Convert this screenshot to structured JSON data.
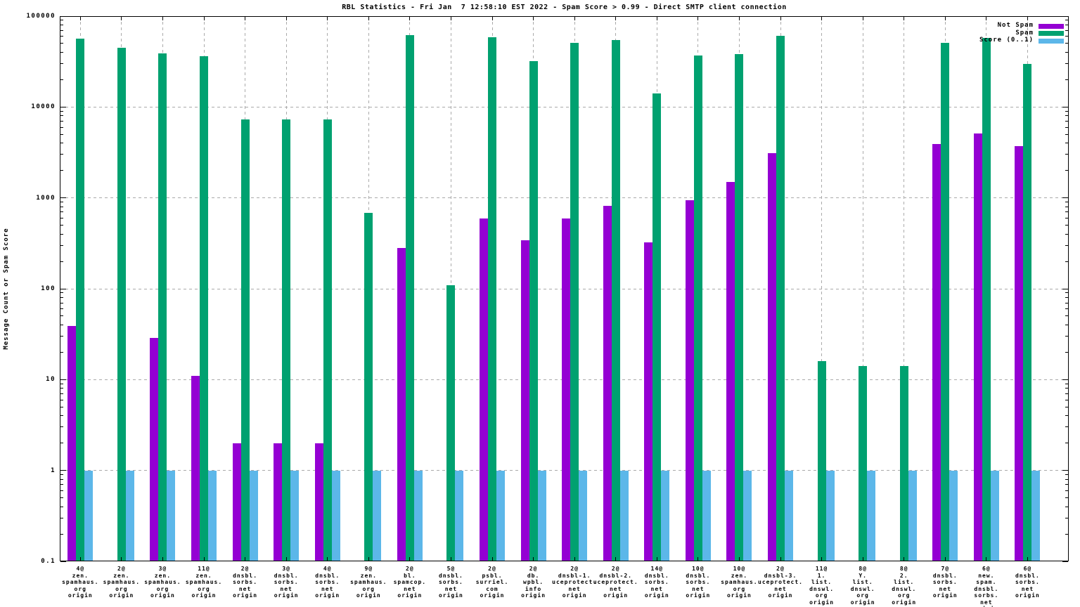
{
  "title": "RBL Statistics - Fri Jan  7 12:58:10 EST 2022 - Spam Score > 0.99 - Direct SMTP client connection",
  "y_axis": {
    "label": "Message Count or Spam Score",
    "ticks": [
      {
        "label": "100000",
        "value": 100000
      },
      {
        "label": "10000",
        "value": 10000
      },
      {
        "label": "1000",
        "value": 1000
      },
      {
        "label": "100",
        "value": 100
      },
      {
        "label": "10",
        "value": 10
      },
      {
        "label": "1",
        "value": 1
      },
      {
        "label": "0.1",
        "value": 0.1
      }
    ]
  },
  "legend": [
    {
      "label": "Not Spam",
      "color": "#9400d3"
    },
    {
      "label": "Spam",
      "color": "#00a170"
    },
    {
      "label": "Score (0..1)",
      "color": "#5cb7e9"
    }
  ],
  "colors": {
    "not_spam": "#9400d3",
    "spam": "#00a170",
    "score": "#5cb7e9",
    "grid": "#aaaaaa",
    "border": "#000000",
    "background": "#ffffff"
  },
  "chart_data": {
    "type": "bar",
    "y_scale": "log",
    "ylim": [
      0.1,
      100000
    ],
    "grid": true,
    "legend_position": "top-right-inside",
    "title": "RBL Statistics - Fri Jan  7 12:58:10 EST 2022 - Spam Score > 0.99 - Direct SMTP client connection",
    "xlabel": "",
    "ylabel": "Message Count or Spam Score",
    "categories": [
      [
        "4@",
        "zen.",
        "spamhaus.",
        "org",
        "origin"
      ],
      [
        "2@",
        "zen.",
        "spamhaus.",
        "org",
        "origin"
      ],
      [
        "3@",
        "zen.",
        "spamhaus.",
        "org",
        "origin"
      ],
      [
        "11@",
        "zen.",
        "spamhaus.",
        "org",
        "origin"
      ],
      [
        "2@",
        "dnsbl.",
        "sorbs.",
        "net",
        "origin"
      ],
      [
        "3@",
        "dnsbl.",
        "sorbs.",
        "net",
        "origin"
      ],
      [
        "4@",
        "dnsbl.",
        "sorbs.",
        "net",
        "origin"
      ],
      [
        "9@",
        "zen.",
        "spamhaus.",
        "org",
        "origin"
      ],
      [
        "2@",
        "bl.",
        "spamcop.",
        "net",
        "origin"
      ],
      [
        "5@",
        "dnsbl.",
        "sorbs.",
        "net",
        "origin"
      ],
      [
        "2@",
        "psbl.",
        "surriel.",
        "com",
        "origin"
      ],
      [
        "2@",
        "db.",
        "wpbl.",
        "info",
        "origin"
      ],
      [
        "2@",
        "dnsbl-1.",
        "uceprotect.",
        "net",
        "origin"
      ],
      [
        "2@",
        "dnsbl-2.",
        "uceprotect.",
        "net",
        "origin"
      ],
      [
        "14@",
        "dnsbl.",
        "sorbs.",
        "net",
        "origin"
      ],
      [
        "10@",
        "dnsbl.",
        "sorbs.",
        "net",
        "origin"
      ],
      [
        "10@",
        "zen.",
        "spamhaus.",
        "org",
        "origin"
      ],
      [
        "2@",
        "dnsbl-3.",
        "uceprotect.",
        "net",
        "origin"
      ],
      [
        "11@",
        "1.",
        "list.",
        "dnswl.",
        "org",
        "origin"
      ],
      [
        "8@",
        "Y.",
        "list.",
        "dnswl.",
        "org",
        "origin"
      ],
      [
        "8@",
        "2.",
        "list.",
        "dnswl.",
        "org",
        "origin"
      ],
      [
        "7@",
        "dnsbl.",
        "sorbs.",
        "net",
        "origin"
      ],
      [
        "6@",
        "new.",
        "spam.",
        "dnsbl.",
        "sorbs.",
        "net",
        "origin"
      ],
      [
        "6@",
        "dnsbl.",
        "sorbs.",
        "net",
        "origin"
      ]
    ],
    "series": [
      {
        "name": "Not Spam",
        "color": "#9400d3",
        "values": [
          39,
          0,
          29,
          11,
          2,
          2,
          2,
          0,
          280,
          0,
          590,
          340,
          590,
          820,
          325,
          950,
          1500,
          3100,
          0,
          0,
          0,
          3900,
          5100,
          3700
        ]
      },
      {
        "name": "Spam",
        "color": "#00a170",
        "values": [
          57000,
          45000,
          39000,
          36000,
          7300,
          7300,
          7300,
          690,
          62000,
          110,
          59000,
          32000,
          51000,
          55000,
          14000,
          37000,
          38000,
          61000,
          16,
          14,
          14,
          51000,
          58000,
          30000
        ]
      },
      {
        "name": "Score (0..1)",
        "color": "#5cb7e9",
        "values": [
          1,
          1,
          1,
          1,
          1,
          1,
          1,
          1,
          1,
          1,
          1,
          1,
          1,
          1,
          1,
          1,
          1,
          1,
          1,
          1,
          1,
          1,
          1,
          1
        ]
      }
    ]
  }
}
